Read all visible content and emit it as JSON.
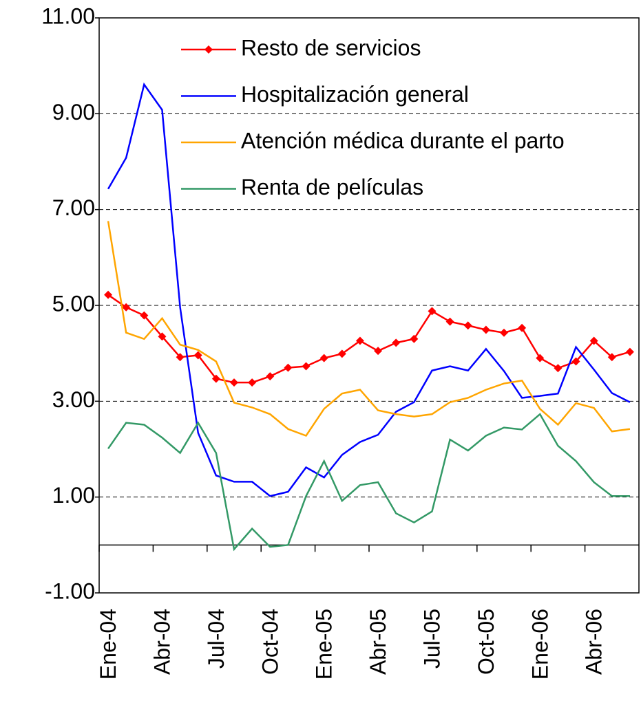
{
  "chart_data": {
    "type": "line",
    "categories": [
      "Ene-04",
      null,
      null,
      "Abr-04",
      null,
      null,
      "Jul-04",
      null,
      null,
      "Oct-04",
      null,
      null,
      "Ene-05",
      null,
      null,
      "Abr-05",
      null,
      null,
      "Jul-05",
      null,
      null,
      "Oct-05",
      null,
      null,
      "Ene-06",
      null,
      null,
      "Abr-06",
      null,
      null
    ],
    "series": [
      {
        "name": "Resto de servicios",
        "color": "#ff0000",
        "marker": "diamond",
        "values": [
          5.22,
          4.96,
          4.79,
          4.35,
          3.92,
          3.96,
          3.47,
          3.39,
          3.39,
          3.52,
          3.7,
          3.73,
          3.9,
          3.99,
          4.26,
          4.05,
          4.22,
          4.3,
          4.88,
          4.66,
          4.58,
          4.49,
          4.43,
          4.53,
          3.9,
          3.69,
          3.83,
          4.26,
          3.92,
          4.03
        ]
      },
      {
        "name": "Hospitalización general",
        "color": "#0000ff",
        "values": [
          7.43,
          8.08,
          9.61,
          9.08,
          4.96,
          2.34,
          1.45,
          1.32,
          1.32,
          1.02,
          1.11,
          1.62,
          1.41,
          1.88,
          2.15,
          2.3,
          2.78,
          2.98,
          3.64,
          3.73,
          3.64,
          4.09,
          3.63,
          3.07,
          3.11,
          3.16,
          4.13,
          3.66,
          3.17,
          2.98
        ]
      },
      {
        "name": "Atención médica durante el parto",
        "color": "#ffa500",
        "values": [
          6.76,
          4.43,
          4.3,
          4.73,
          4.18,
          4.07,
          3.83,
          2.97,
          2.87,
          2.73,
          2.42,
          2.28,
          2.84,
          3.16,
          3.24,
          2.81,
          2.73,
          2.68,
          2.73,
          2.98,
          3.07,
          3.24,
          3.37,
          3.43,
          2.84,
          2.51,
          2.96,
          2.86,
          2.37,
          2.42
        ]
      },
      {
        "name": "Renta de películas",
        "color": "#339966",
        "values": [
          2.01,
          2.55,
          2.51,
          2.24,
          1.92,
          2.55,
          1.92,
          -0.09,
          0.34,
          -0.04,
          0.0,
          1.02,
          1.75,
          0.92,
          1.25,
          1.31,
          0.66,
          0.47,
          0.7,
          2.2,
          1.97,
          2.28,
          2.45,
          2.41,
          2.73,
          2.07,
          1.75,
          1.31,
          1.02,
          1.02
        ]
      }
    ],
    "ylim": [
      -1,
      11
    ],
    "yticks": [
      {
        "value": -1,
        "label": "-1.00"
      },
      {
        "value": 1,
        "label": "1.00"
      },
      {
        "value": 3,
        "label": "3.00"
      },
      {
        "value": 5,
        "label": "5.00"
      },
      {
        "value": 7,
        "label": "7.00"
      },
      {
        "value": 9,
        "label": "9.00"
      },
      {
        "value": 11,
        "label": "11.00"
      }
    ],
    "grid": true,
    "legend": "top"
  }
}
